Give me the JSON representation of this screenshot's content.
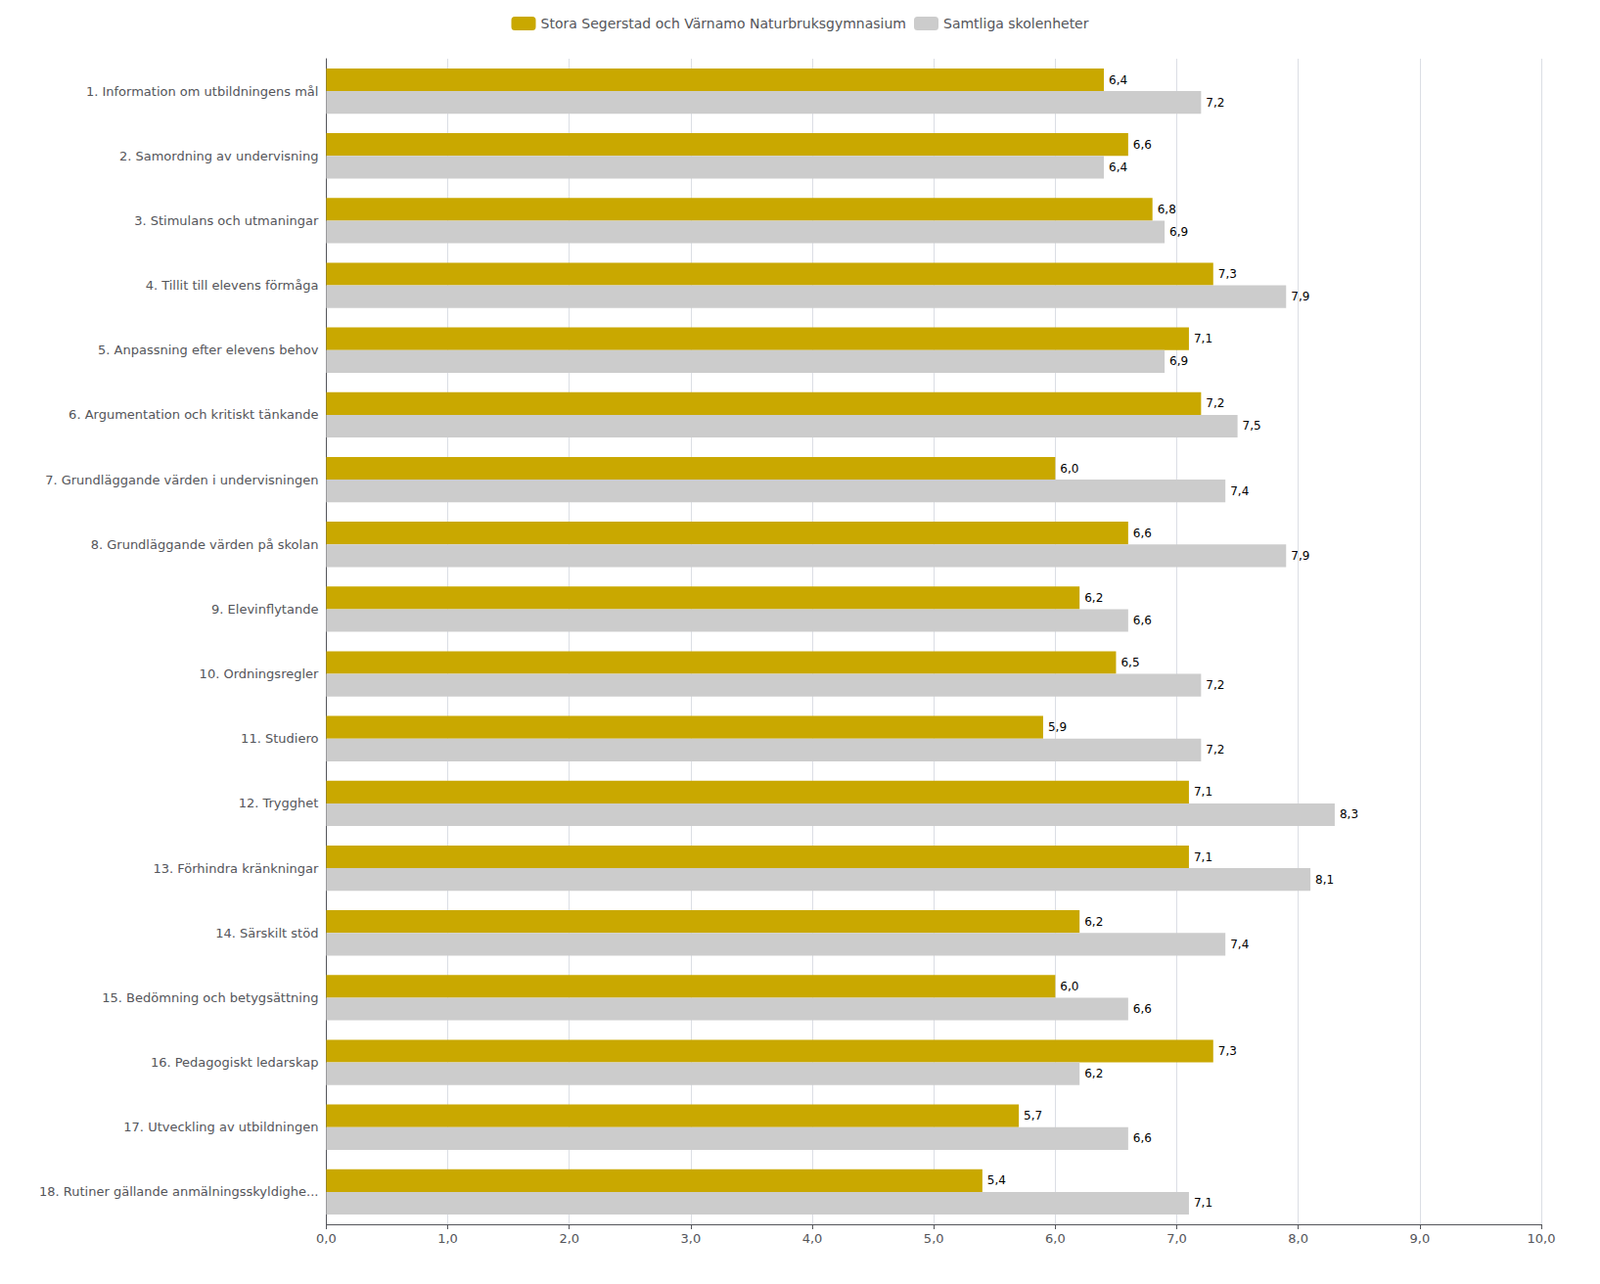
{
  "chart_data": {
    "type": "bar",
    "orientation": "horizontal",
    "categories": [
      "1. Information om utbildningens mål",
      "2. Samordning av undervisning",
      "3. Stimulans och utmaningar",
      "4. Tillit till elevens förmåga",
      "5. Anpassning efter elevens behov",
      "6. Argumentation och kritiskt tänkande",
      "7. Grundläggande värden i undervisningen",
      "8. Grundläggande värden på skolan",
      "9. Elevinflytande",
      "10. Ordningsregler",
      "11. Studiero",
      "12. Trygghet",
      "13. Förhindra kränkningar",
      "14. Särskilt stöd",
      "15. Bedömning och betygsättning",
      "16. Pedagogiskt ledarskap",
      "17. Utveckling av utbildningen",
      "18. Rutiner gällande anmälningsskyldighe..."
    ],
    "series": [
      {
        "name": "Stora Segerstad och Värnamo Naturbruksgymnasium",
        "color": "#C9A800",
        "values": [
          6.4,
          6.6,
          6.8,
          7.3,
          7.1,
          7.2,
          6.0,
          6.6,
          6.2,
          6.5,
          5.9,
          7.1,
          7.1,
          6.2,
          6.0,
          7.3,
          5.7,
          5.4
        ],
        "value_labels": [
          "6,4",
          "6,6",
          "6,8",
          "7,3",
          "7,1",
          "7,2",
          "6,0",
          "6,6",
          "6,2",
          "6,5",
          "5,9",
          "7,1",
          "7,1",
          "6,2",
          "6,0",
          "7,3",
          "5,7",
          "5,4"
        ]
      },
      {
        "name": "Samtliga skolenheter",
        "color": "#CCCCCC",
        "values": [
          7.2,
          6.4,
          6.9,
          7.9,
          6.9,
          7.5,
          7.4,
          7.9,
          6.6,
          7.2,
          7.2,
          8.3,
          8.1,
          7.4,
          6.6,
          6.2,
          6.6,
          7.1
        ],
        "value_labels": [
          "7,2",
          "6,4",
          "6,9",
          "7,9",
          "6,9",
          "7,5",
          "7,4",
          "7,9",
          "6,6",
          "7,2",
          "7,2",
          "8,3",
          "8,1",
          "7,4",
          "6,6",
          "6,2",
          "6,6",
          "7,1"
        ]
      }
    ],
    "xlim": [
      0,
      10
    ],
    "xticks": [
      {
        "value": 0,
        "label": "0,0"
      },
      {
        "value": 1,
        "label": "1,0"
      },
      {
        "value": 2,
        "label": "2,0"
      },
      {
        "value": 3,
        "label": "3,0"
      },
      {
        "value": 4,
        "label": "4,0"
      },
      {
        "value": 5,
        "label": "5,0"
      },
      {
        "value": 6,
        "label": "6,0"
      },
      {
        "value": 7,
        "label": "7,0"
      },
      {
        "value": 8,
        "label": "8,0"
      },
      {
        "value": 9,
        "label": "9,0"
      },
      {
        "value": 10,
        "label": "10,0"
      }
    ],
    "grid": true,
    "legend": "top",
    "data_labels": true
  }
}
